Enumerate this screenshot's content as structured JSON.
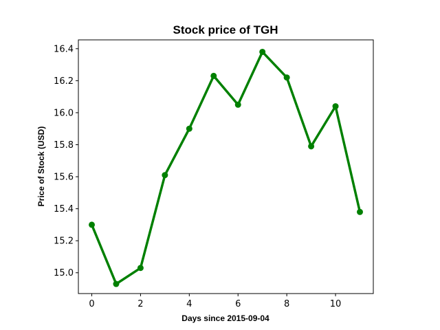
{
  "chart_data": {
    "type": "line",
    "title": "Stock price of TGH",
    "xlabel": "Days since 2015-09-04",
    "ylabel": "Price of Stock (USD)",
    "xlim": [
      -0.55,
      11.55
    ],
    "ylim": [
      14.87,
      16.455
    ],
    "xticks": [
      0,
      2,
      4,
      6,
      8,
      10
    ],
    "yticks": [
      "15.0",
      "15.2",
      "15.4",
      "15.6",
      "15.8",
      "16.0",
      "16.2",
      "16.4"
    ],
    "grid": false,
    "series": [
      {
        "color": "#008000",
        "marker": "circle",
        "x": [
          0,
          1,
          2,
          3,
          4,
          5,
          6,
          7,
          8,
          9,
          10,
          11
        ],
        "y": [
          15.3,
          14.93,
          15.03,
          15.61,
          15.9,
          16.23,
          16.05,
          16.38,
          16.22,
          15.79,
          16.04,
          15.38
        ]
      }
    ]
  }
}
